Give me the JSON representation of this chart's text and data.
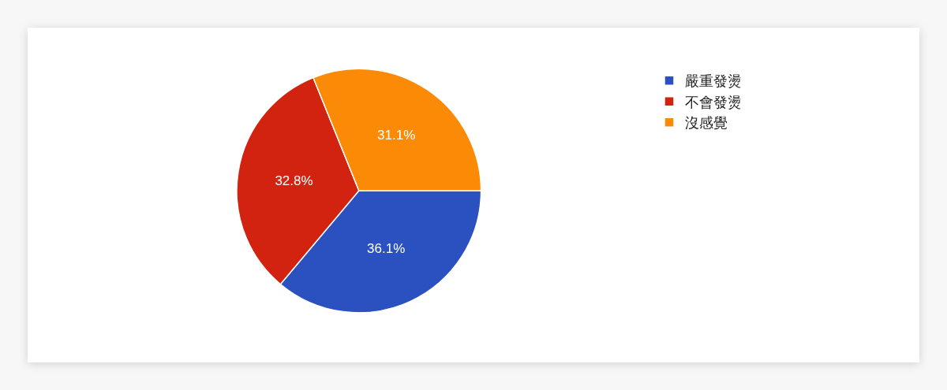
{
  "chart_data": {
    "type": "pie",
    "categories": [
      "嚴重發燙",
      "不會發燙",
      "沒感覺"
    ],
    "values": [
      36.1,
      32.8,
      31.1
    ],
    "colors": [
      "#2b50c0",
      "#d22310",
      "#fb8b07"
    ],
    "value_labels": [
      "36.1%",
      "32.8%",
      "31.1%"
    ],
    "legend": "top right"
  }
}
